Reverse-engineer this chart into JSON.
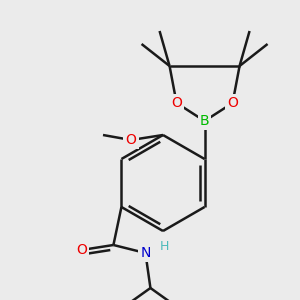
{
  "background_color": "#ebebeb",
  "bond_color": "#1a1a1a",
  "bond_width": 1.8,
  "atoms": {
    "B": {
      "color": "#00bb00"
    },
    "O": {
      "color": "#ee0000"
    },
    "N": {
      "color": "#0000cc"
    },
    "H_on_N": {
      "color": "#4dbbbb"
    }
  },
  "font_size": 10,
  "font_size_H": 9
}
